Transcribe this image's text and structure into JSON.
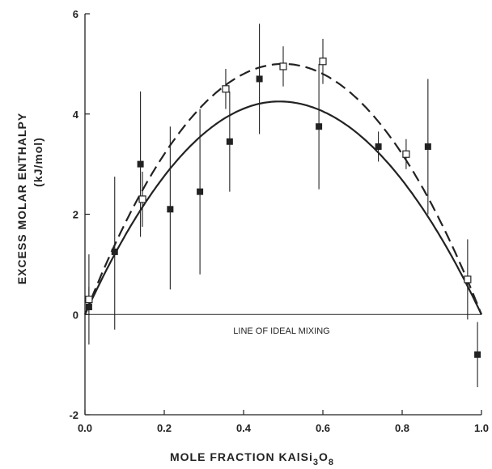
{
  "chart_data": {
    "type": "scatter",
    "xlabel": "MOLE  FRACTION  KAlSi",
    "xlabel_sub1": "3",
    "xlabel_mid": "O",
    "xlabel_sub2": "8",
    "ylabel_line1": "EXCESS MOLAR ENTHALPY",
    "ylabel_line2": "(kJ/mol)",
    "annotation": "LINE OF IDEAL MIXING",
    "xlim": [
      0,
      1
    ],
    "ylim": [
      -2,
      6
    ],
    "x_ticks": [
      "0.0",
      "0.2",
      "0.4",
      "0.6",
      "0.8",
      "1.0"
    ],
    "x_tick_values": [
      0,
      0.2,
      0.4,
      0.6,
      0.8,
      1.0
    ],
    "y_ticks": [
      "-2",
      "0",
      "2",
      "4",
      "6"
    ],
    "y_tick_values": [
      -2,
      0,
      2,
      4,
      6
    ],
    "grid": false,
    "series": [
      {
        "marker": "filled-square",
        "color": "#222222",
        "points": [
          {
            "x": 0.01,
            "y": 0.15,
            "err_low": -0.6,
            "err_high": 1.2
          },
          {
            "x": 0.075,
            "y": 1.25,
            "err_low": -0.3,
            "err_high": 2.75
          },
          {
            "x": 0.14,
            "y": 3.0,
            "err_low": 1.55,
            "err_high": 4.45
          },
          {
            "x": 0.215,
            "y": 2.1,
            "err_low": 0.5,
            "err_high": 3.75
          },
          {
            "x": 0.29,
            "y": 2.45,
            "err_low": 0.8,
            "err_high": 4.1
          },
          {
            "x": 0.365,
            "y": 3.45,
            "err_low": 2.45,
            "err_high": 4.45
          },
          {
            "x": 0.44,
            "y": 4.7,
            "err_low": 3.6,
            "err_high": 5.8
          },
          {
            "x": 0.59,
            "y": 3.75,
            "err_low": 2.5,
            "err_high": 5.0
          },
          {
            "x": 0.74,
            "y": 3.35,
            "err_low": 3.05,
            "err_high": 3.65
          },
          {
            "x": 0.865,
            "y": 3.35,
            "err_low": 2.0,
            "err_high": 4.7
          },
          {
            "x": 0.99,
            "y": -0.8,
            "err_low": -1.45,
            "err_high": -0.15
          }
        ]
      },
      {
        "marker": "open-square",
        "color": "#222222",
        "points": [
          {
            "x": 0.01,
            "y": 0.3,
            "err_low": 0.05,
            "err_high": 0.55
          },
          {
            "x": 0.145,
            "y": 2.3,
            "err_low": 1.75,
            "err_high": 2.85
          },
          {
            "x": 0.355,
            "y": 4.5,
            "err_low": 4.1,
            "err_high": 4.9
          },
          {
            "x": 0.5,
            "y": 4.95,
            "err_low": 4.55,
            "err_high": 5.35
          },
          {
            "x": 0.6,
            "y": 5.05,
            "err_low": 4.6,
            "err_high": 5.5
          },
          {
            "x": 0.81,
            "y": 3.2,
            "err_low": 2.9,
            "err_high": 3.5
          },
          {
            "x": 0.965,
            "y": 0.7,
            "err_low": -0.1,
            "err_high": 1.5
          }
        ]
      }
    ],
    "curves": [
      {
        "style": "solid",
        "peak_y": 4.25,
        "peak_x": 0.49
      },
      {
        "style": "dashed",
        "peak_y": 5.0,
        "peak_x": 0.5
      }
    ],
    "ideal_mixing_y": 0
  }
}
